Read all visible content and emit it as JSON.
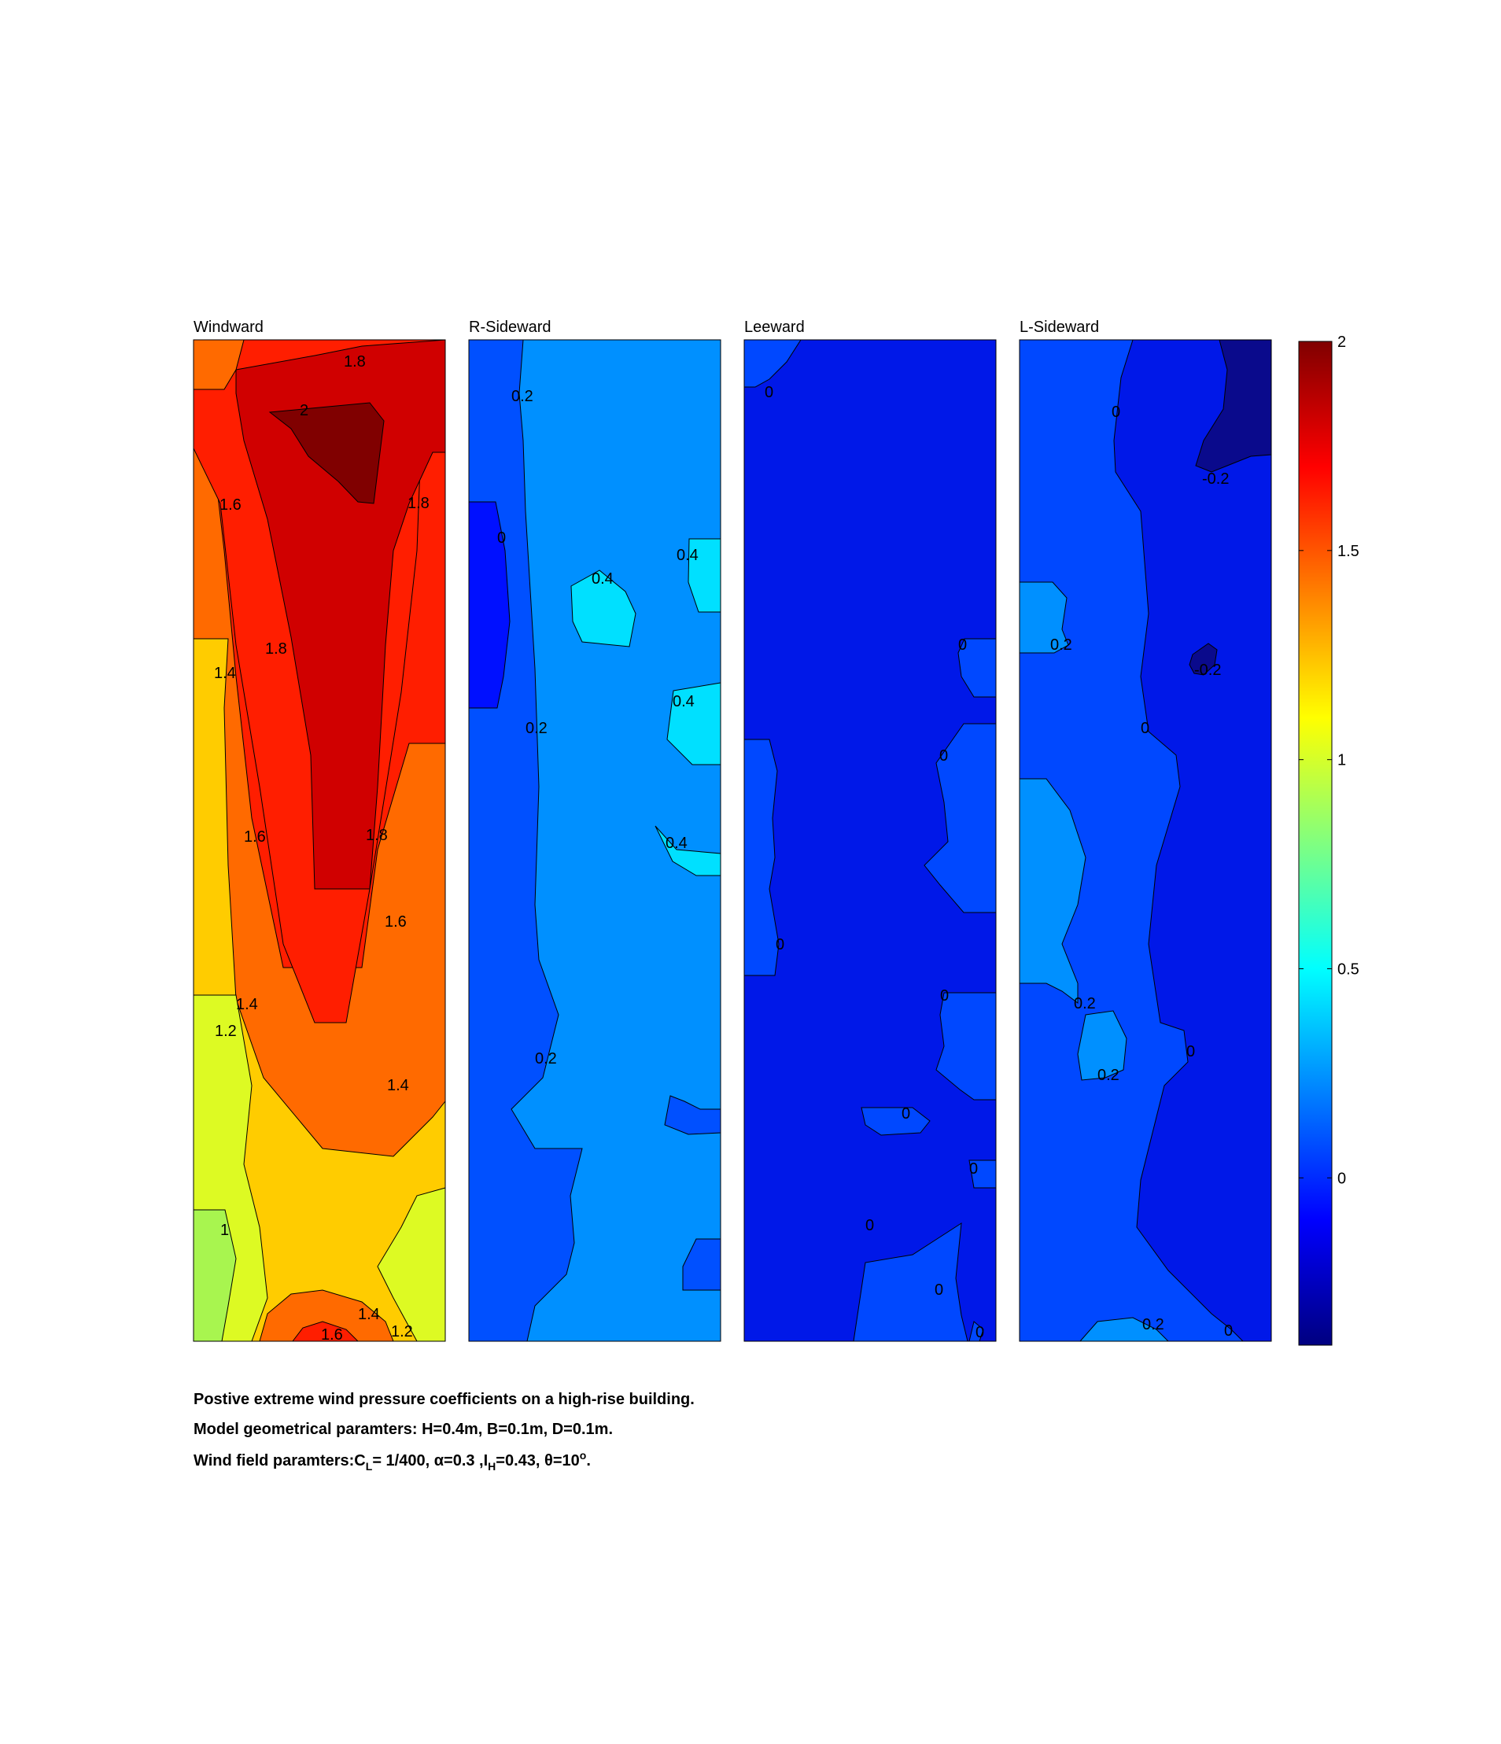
{
  "chart_data": {
    "type": "heatmap",
    "panels": [
      {
        "title": "Windward",
        "levels": [
          {
            "value": 1.0,
            "color": "#a8f54f"
          },
          {
            "value": 1.2,
            "color": "#ddfa23"
          },
          {
            "value": 1.4,
            "color": "#ffcc00"
          },
          {
            "value": 1.6,
            "color": "#ff6a00"
          },
          {
            "value": 1.8,
            "color": "#ff1e00"
          },
          {
            "value": 1.9,
            "color": "#d00000"
          },
          {
            "value": 2.0,
            "color": "#800000"
          }
        ],
        "contour_labels": [
          "1.8",
          "2",
          "1.6",
          "1.8",
          "1.8",
          "1.4",
          "1.6",
          "1.8",
          "1.6",
          "1.4",
          "1.2",
          "1.4",
          "1",
          "1.4",
          "1.6",
          "1.2"
        ]
      },
      {
        "title": "R-Sideward",
        "levels": [
          {
            "value": 0.0,
            "color": "#0010ff"
          },
          {
            "value": 0.1,
            "color": "#0050ff"
          },
          {
            "value": 0.2,
            "color": "#0090ff"
          },
          {
            "value": 0.4,
            "color": "#00e0ff"
          }
        ],
        "contour_labels": [
          "0.2",
          "0",
          "0.4",
          "0.4",
          "0.4",
          "0.2",
          "0.4",
          "0.2"
        ]
      },
      {
        "title": "Leeward",
        "levels": [
          {
            "value": -0.05,
            "color": "#0018e8"
          },
          {
            "value": 0.0,
            "color": "#0048ff"
          }
        ],
        "contour_labels": [
          "0",
          "0",
          "0",
          "0",
          "0",
          "0",
          "0",
          "0",
          "0",
          "0"
        ]
      },
      {
        "title": "L-Sideward",
        "levels": [
          {
            "value": -0.2,
            "color": "#0a0a8c"
          },
          {
            "value": -0.1,
            "color": "#0018e8"
          },
          {
            "value": 0.0,
            "color": "#0048ff"
          },
          {
            "value": 0.2,
            "color": "#0090ff"
          }
        ],
        "contour_labels": [
          "0",
          "-0.2",
          "0.2",
          "-0.2",
          "0",
          "0.2",
          "0",
          "0.2",
          "0.2",
          "0"
        ]
      }
    ],
    "colorbar": {
      "colormap": "jet",
      "range": [
        -0.4,
        2
      ],
      "ticks": [
        0,
        0.5,
        1,
        1.5,
        2
      ],
      "tick_labels": [
        "0",
        "0.5",
        "1",
        "1.5",
        "2"
      ]
    },
    "caption": {
      "line1": "Postive extreme  wind pressure coefficients on a high-rise building.",
      "line2": "Model geometrical paramters: H=0.4m, B=0.1m, D=0.1m.",
      "line3": {
        "prefix": "Wind field paramters:C",
        "cl_sub": "L",
        "cl_value": "= 1/400, ",
        "alpha": "α=0.3 ,I",
        "ih_sub": "H",
        "ih_value": "=0.43, ",
        "theta": "θ=10",
        "theta_sup": "o",
        "end": "."
      }
    }
  }
}
